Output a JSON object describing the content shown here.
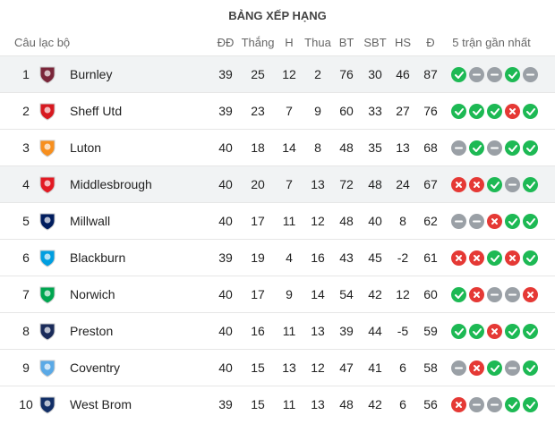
{
  "title": "BẢNG XẾP HẠNG",
  "headers": {
    "club": "Câu lạc bộ",
    "stats": [
      "ĐĐ",
      "Thắng",
      "H",
      "Thua",
      "BT",
      "SBT",
      "HS",
      "Đ"
    ],
    "form": "5 trận gần nhất"
  },
  "rows": [
    {
      "rank": 1,
      "team": "Burnley",
      "stats": [
        39,
        25,
        12,
        2,
        76,
        30,
        46,
        87
      ],
      "form": [
        "W",
        "D",
        "D",
        "W",
        "D"
      ],
      "highlight": true
    },
    {
      "rank": 2,
      "team": "Sheff Utd",
      "stats": [
        39,
        23,
        7,
        9,
        60,
        33,
        27,
        76
      ],
      "form": [
        "W",
        "W",
        "W",
        "L",
        "W"
      ],
      "highlight": false
    },
    {
      "rank": 3,
      "team": "Luton",
      "stats": [
        40,
        18,
        14,
        8,
        48,
        35,
        13,
        68
      ],
      "form": [
        "D",
        "W",
        "D",
        "W",
        "W"
      ],
      "highlight": false
    },
    {
      "rank": 4,
      "team": "Middlesbrough",
      "stats": [
        40,
        20,
        7,
        13,
        72,
        48,
        24,
        67
      ],
      "form": [
        "L",
        "L",
        "W",
        "D",
        "W"
      ],
      "highlight": true
    },
    {
      "rank": 5,
      "team": "Millwall",
      "stats": [
        40,
        17,
        11,
        12,
        48,
        40,
        8,
        62
      ],
      "form": [
        "D",
        "D",
        "L",
        "W",
        "W"
      ],
      "highlight": false
    },
    {
      "rank": 6,
      "team": "Blackburn",
      "stats": [
        39,
        19,
        4,
        16,
        43,
        45,
        -2,
        61
      ],
      "form": [
        "L",
        "L",
        "W",
        "L",
        "W"
      ],
      "highlight": false
    },
    {
      "rank": 7,
      "team": "Norwich",
      "stats": [
        40,
        17,
        9,
        14,
        54,
        42,
        12,
        60
      ],
      "form": [
        "W",
        "L",
        "D",
        "D",
        "L"
      ],
      "highlight": false
    },
    {
      "rank": 8,
      "team": "Preston",
      "stats": [
        40,
        16,
        11,
        13,
        39,
        44,
        -5,
        59
      ],
      "form": [
        "W",
        "W",
        "L",
        "W",
        "W"
      ],
      "highlight": false
    },
    {
      "rank": 9,
      "team": "Coventry",
      "stats": [
        40,
        15,
        13,
        12,
        47,
        41,
        6,
        58
      ],
      "form": [
        "D",
        "L",
        "W",
        "D",
        "W"
      ],
      "highlight": false
    },
    {
      "rank": 10,
      "team": "West Brom",
      "stats": [
        39,
        15,
        11,
        13,
        48,
        42,
        6,
        56
      ],
      "form": [
        "L",
        "D",
        "D",
        "W",
        "W"
      ],
      "highlight": false
    }
  ]
}
